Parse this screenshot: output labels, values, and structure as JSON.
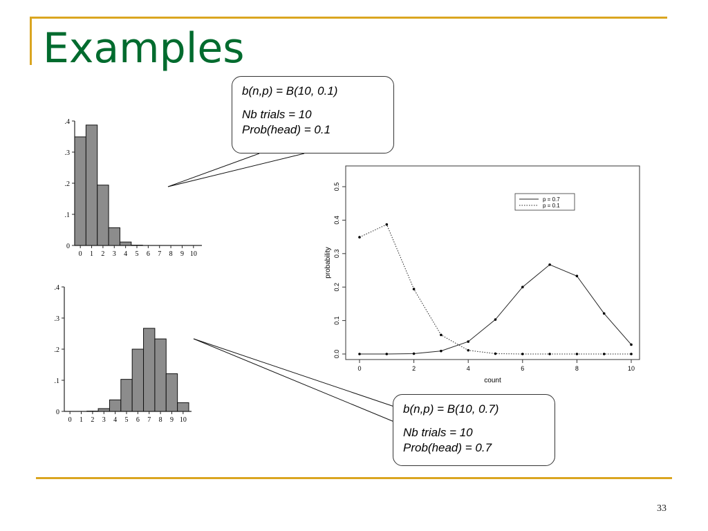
{
  "slide": {
    "title": "Examples",
    "page_number": "33",
    "accent_color": "#DAA520",
    "title_color": "#006B2E"
  },
  "callouts": {
    "top": {
      "formula": "b(n,p) = B(10, 0.1)",
      "trials": "Nb trials = 10",
      "prob": "Prob(head) = 0.1"
    },
    "bottom": {
      "formula": "b(n,p) = B(10, 0.7)",
      "trials": "Nb trials = 10",
      "prob": "Prob(head) = 0.7"
    }
  },
  "chart_data": [
    {
      "type": "bar",
      "categories": [
        "0",
        "1",
        "2",
        "3",
        "4",
        "5",
        "6",
        "7",
        "8",
        "9",
        "10"
      ],
      "values": [
        0.349,
        0.387,
        0.194,
        0.057,
        0.011,
        0.001,
        0,
        0,
        0,
        0,
        0
      ],
      "yticks": [
        ".4",
        ".3",
        ".2",
        ".1",
        "0"
      ],
      "ylim": [
        0,
        0.4
      ],
      "bar_color": "#8c8c8c"
    },
    {
      "type": "bar",
      "categories": [
        "0",
        "1",
        "2",
        "3",
        "4",
        "5",
        "6",
        "7",
        "8",
        "9",
        "10"
      ],
      "values": [
        0,
        0,
        0.001,
        0.009,
        0.037,
        0.103,
        0.2,
        0.267,
        0.233,
        0.121,
        0.028
      ],
      "yticks": [
        ".4",
        ".3",
        ".2",
        ".1",
        "0"
      ],
      "ylim": [
        0,
        0.4
      ],
      "bar_color": "#8c8c8c"
    },
    {
      "type": "line",
      "x": [
        0,
        1,
        2,
        3,
        4,
        5,
        6,
        7,
        8,
        9,
        10
      ],
      "series": [
        {
          "name": "p = 0.7",
          "style": "solid",
          "values": [
            0,
            0,
            0.001,
            0.009,
            0.037,
            0.103,
            0.2,
            0.267,
            0.233,
            0.121,
            0.028
          ]
        },
        {
          "name": "p = 0.1",
          "style": "dotted",
          "values": [
            0.349,
            0.387,
            0.194,
            0.057,
            0.011,
            0.001,
            0,
            0,
            0,
            0,
            0
          ]
        }
      ],
      "xlabel": "count",
      "ylabel": "probability",
      "xticks": [
        "0",
        "2",
        "4",
        "6",
        "8",
        "10"
      ],
      "yticks": [
        "0.0",
        "0.1",
        "0.2",
        "0.3",
        "0.4",
        "0.5"
      ],
      "xlim": [
        0,
        10
      ],
      "ylim": [
        0,
        0.5
      ],
      "legend": "top-right"
    }
  ]
}
